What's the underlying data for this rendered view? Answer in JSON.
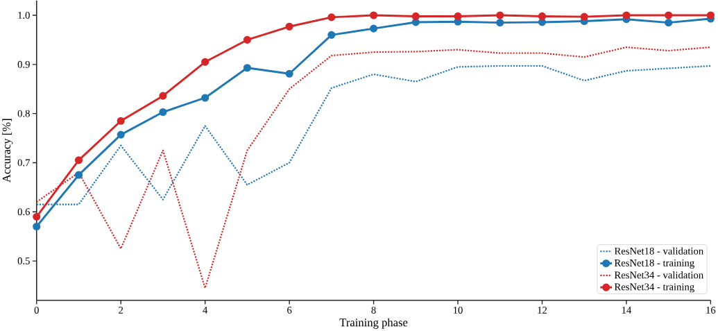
{
  "chart_data": {
    "type": "line",
    "xlabel": "Training phase",
    "ylabel": "Accuracy [%]",
    "x": [
      0,
      1,
      2,
      3,
      4,
      5,
      6,
      7,
      8,
      9,
      10,
      11,
      12,
      13,
      14,
      15,
      16
    ],
    "series": [
      {
        "name": "ResNet18 - validation",
        "color": "#1f77b4",
        "line_style": "dotted",
        "marker": "none",
        "values": [
          0.615,
          0.615,
          0.735,
          0.625,
          0.775,
          0.655,
          0.7,
          0.852,
          0.88,
          0.865,
          0.895,
          0.897,
          0.897,
          0.867,
          0.887,
          0.892,
          0.897
        ]
      },
      {
        "name": "ResNet18 - training",
        "color": "#1f77b4",
        "line_style": "solid",
        "marker": "circle",
        "values": [
          0.57,
          0.675,
          0.757,
          0.803,
          0.832,
          0.893,
          0.881,
          0.96,
          0.973,
          0.986,
          0.987,
          0.985,
          0.986,
          0.988,
          0.992,
          0.985,
          0.993
        ]
      },
      {
        "name": "ResNet34 - validation",
        "color": "#d62728",
        "line_style": "dotted",
        "marker": "none",
        "values": [
          0.62,
          0.68,
          0.525,
          0.725,
          0.445,
          0.725,
          0.85,
          0.918,
          0.925,
          0.926,
          0.93,
          0.923,
          0.923,
          0.915,
          0.935,
          0.928,
          0.935
        ]
      },
      {
        "name": "ResNet34 - training",
        "color": "#d62728",
        "line_style": "solid",
        "marker": "circle",
        "values": [
          0.59,
          0.705,
          0.785,
          0.836,
          0.905,
          0.95,
          0.977,
          0.996,
          1.0,
          0.998,
          0.998,
          1.0,
          0.998,
          0.997,
          1.0,
          1.0,
          1.0
        ]
      }
    ],
    "xlim": [
      0,
      16
    ],
    "ylim": [
      0.42,
      1.03
    ],
    "xticks": [
      0,
      2,
      4,
      6,
      8,
      10,
      12,
      14,
      16
    ],
    "yticks": [
      {
        "value": 0.5,
        "label": "0.5"
      },
      {
        "value": 0.6,
        "label": "0.6"
      },
      {
        "value": 0.7,
        "label": "0.7"
      },
      {
        "value": 0.8,
        "label": "0.8"
      },
      {
        "value": 0.9,
        "label": "0.9"
      },
      {
        "value": 1.0,
        "label": "1.0"
      }
    ],
    "grid": false,
    "legend": "bottom right"
  }
}
